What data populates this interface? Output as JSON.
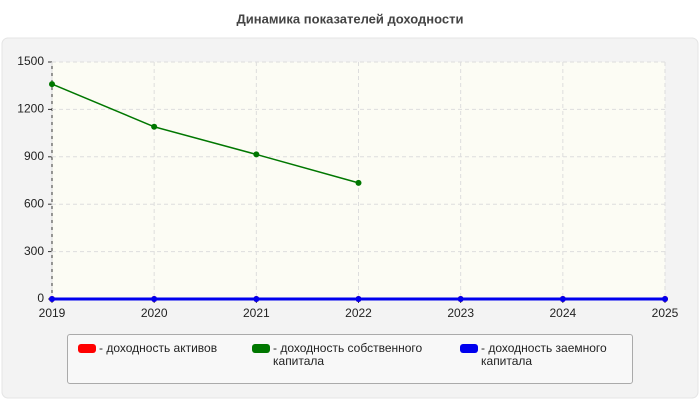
{
  "chart_data": {
    "type": "line",
    "title": "Динамика показателей доходности",
    "x": [
      2019,
      2020,
      2021,
      2022,
      2023,
      2024,
      2025
    ],
    "xlim": [
      2019,
      2025
    ],
    "xticks": [
      2019,
      2020,
      2021,
      2022,
      2023,
      2024,
      2025
    ],
    "ylim": [
      0,
      1500
    ],
    "yticks": [
      0,
      300,
      600,
      900,
      1200,
      1500
    ],
    "grid": true,
    "series": [
      {
        "name": "- доходность активов",
        "color": "#ff0000",
        "values": [
          0,
          0,
          0,
          0,
          0,
          0,
          0
        ]
      },
      {
        "name": "- доходность собственного капитала",
        "color": "#007700",
        "values": [
          1360,
          1090,
          915,
          735,
          null,
          null,
          null
        ]
      },
      {
        "name": "- доходность заемного капитала",
        "color": "#0000ee",
        "values": [
          0,
          0,
          0,
          0,
          0,
          0,
          0
        ]
      }
    ]
  }
}
